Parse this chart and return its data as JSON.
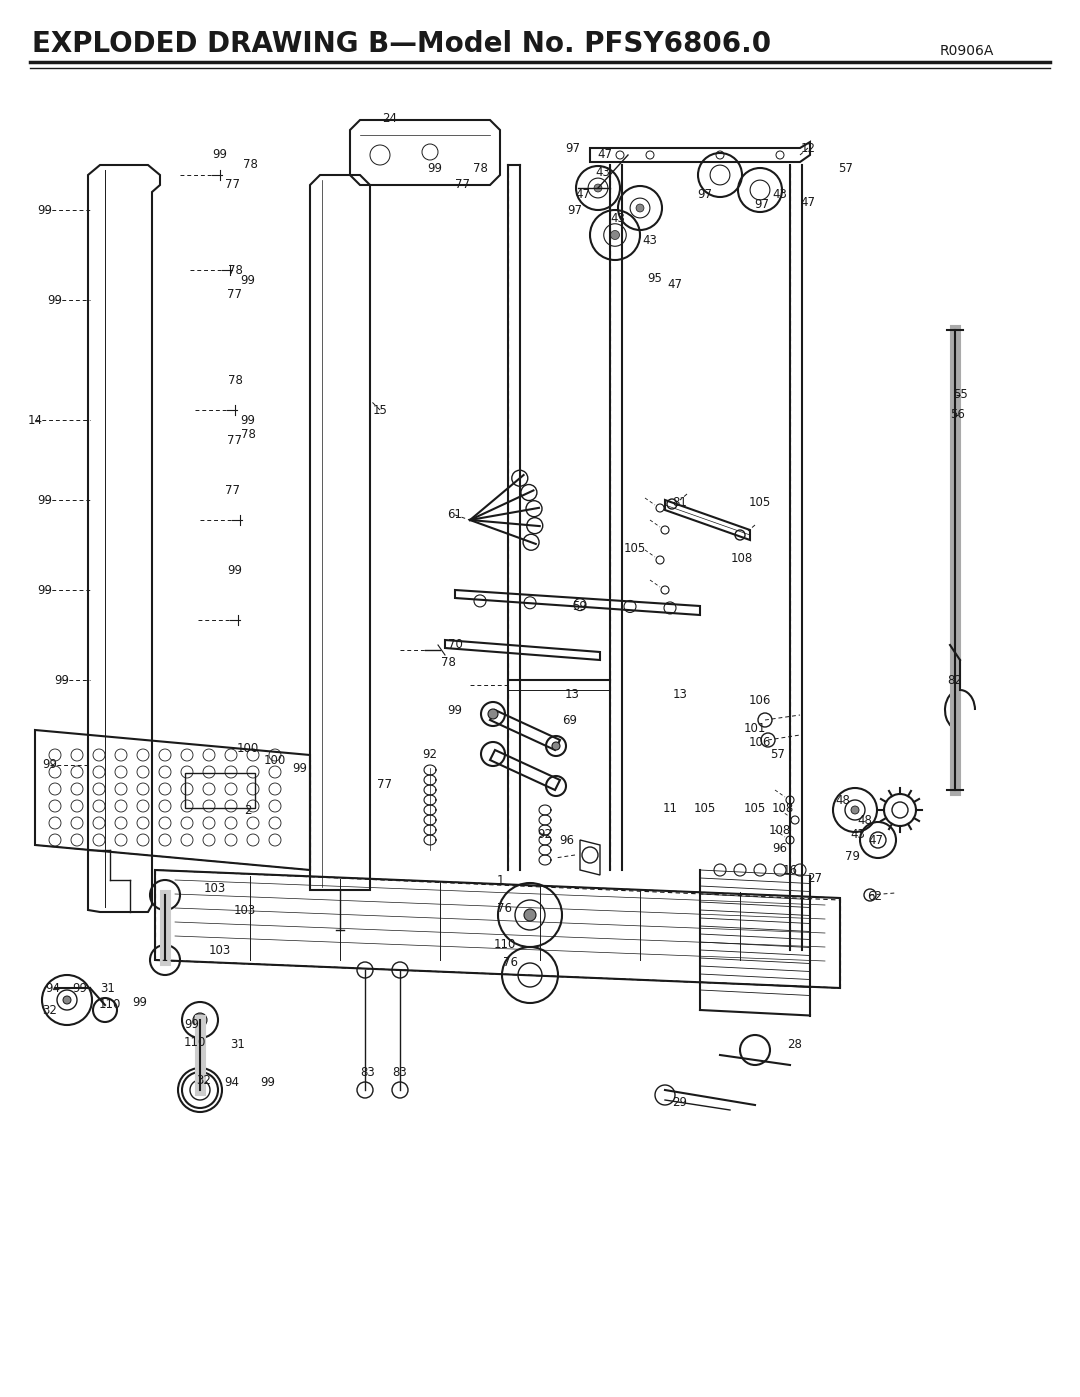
{
  "title": "EXPLODED DRAWING B—Model No. PFSY6806.0",
  "title_code": "R0906A",
  "bg_color": "#ffffff",
  "line_color": "#1a1a1a",
  "title_fontsize": 20,
  "code_fontsize": 10,
  "label_fontsize": 8.5,
  "fig_width": 10.8,
  "fig_height": 13.97
}
